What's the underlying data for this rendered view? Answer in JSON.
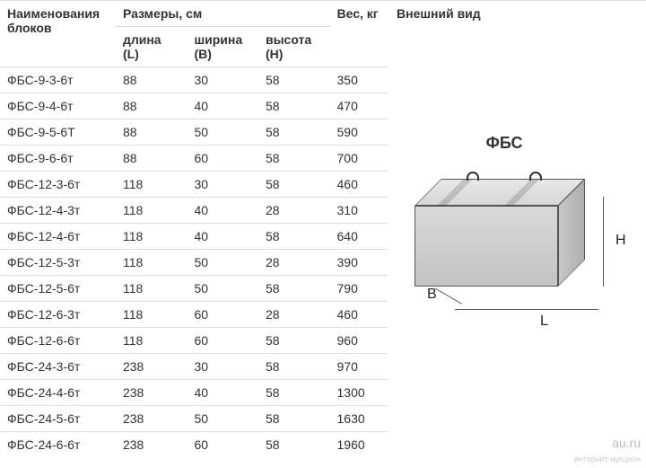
{
  "table": {
    "header": {
      "name": "Наименования блоков",
      "dims_group": "Размеры, см",
      "length": "длина (L)",
      "width": "ширина (B)",
      "height": "высота (H)",
      "weight": "Вес, кг"
    },
    "rows": [
      {
        "name": "ФБС-9-3-6т",
        "l": "88",
        "b": "30",
        "h": "58",
        "w": "350"
      },
      {
        "name": "ФБС-9-4-6т",
        "l": "88",
        "b": "40",
        "h": "58",
        "w": "470"
      },
      {
        "name": "ФБС-9-5-6Т",
        "l": "88",
        "b": "50",
        "h": "58",
        "w": "590"
      },
      {
        "name": "ФБС-9-6-6т",
        "l": "88",
        "b": "60",
        "h": "58",
        "w": "700"
      },
      {
        "name": "ФБС-12-3-6т",
        "l": "118",
        "b": "30",
        "h": "58",
        "w": "460"
      },
      {
        "name": "ФБС-12-4-3т",
        "l": "118",
        "b": "40",
        "h": "28",
        "w": "310"
      },
      {
        "name": "ФБС-12-4-6т",
        "l": "118",
        "b": "40",
        "h": "58",
        "w": "640"
      },
      {
        "name": "ФБС-12-5-3т",
        "l": "118",
        "b": "50",
        "h": "28",
        "w": "390"
      },
      {
        "name": "ФБС-12-5-6т",
        "l": "118",
        "b": "50",
        "h": "58",
        "w": "790"
      },
      {
        "name": "ФБС-12-6-3т",
        "l": "118",
        "b": "60",
        "h": "28",
        "w": "460"
      },
      {
        "name": "ФБС-12-6-6т",
        "l": "118",
        "b": "60",
        "h": "58",
        "w": "960"
      },
      {
        "name": "ФБС-24-3-6т",
        "l": "238",
        "b": "30",
        "h": "58",
        "w": "970"
      },
      {
        "name": "ФБС-24-4-6т",
        "l": "238",
        "b": "40",
        "h": "58",
        "w": "1300"
      },
      {
        "name": "ФБС-24-5-6т",
        "l": "238",
        "b": "50",
        "h": "58",
        "w": "1630"
      },
      {
        "name": "ФБС-24-6-6т",
        "l": "238",
        "b": "60",
        "h": "58",
        "w": "1960"
      }
    ]
  },
  "diagram": {
    "section_title": "Внешний вид",
    "label_L": "L",
    "label_B": "B",
    "label_H": "H",
    "block_name": "ФБС"
  },
  "watermark": {
    "main": "au.ru",
    "sub": "интернет-аукцион"
  },
  "colors": {
    "border": "#dddddd",
    "text": "#333333",
    "block_front": "#cfcfcf",
    "block_top": "#e0e0e0",
    "block_side": "#bcbcbc"
  }
}
